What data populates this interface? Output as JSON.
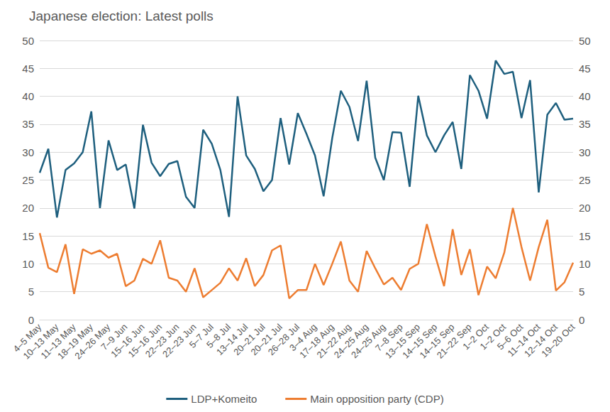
{
  "chart_data": {
    "type": "line",
    "title": "Japanese election: Latest polls",
    "categories": [
      "4–5 May",
      null,
      "10–13 May",
      null,
      "11–13 May",
      null,
      "18–19 May",
      null,
      "24–26 May",
      null,
      "7–9 Jun",
      null,
      "15–16 Jun",
      null,
      "15–16 Jun",
      null,
      "22–23 Jun",
      null,
      "22–23 Jun",
      null,
      "5–7 Jul",
      null,
      "5–8 Jul",
      null,
      "13–14 Jul",
      null,
      "20–21 Jul",
      null,
      "20–21 Jul",
      null,
      "26–28 Jul",
      null,
      "3–4 Aug",
      null,
      "17–18 Aug",
      null,
      "21–22 Aug",
      null,
      "24–25 Aug",
      null,
      "24–25 Aug",
      null,
      "7–8 Sep",
      null,
      "13–15 Sep",
      null,
      "14–15 Sep",
      null,
      "14–15 Sep",
      null,
      "21–22 Sep",
      null,
      "1–2 Oct",
      null,
      "1–2 Oct",
      null,
      "5–6 Oct",
      null,
      "11–14 Oct",
      null,
      "12–14 Oct",
      null,
      "19–20 Oct"
    ],
    "series": [
      {
        "name": "LDP+Komeito",
        "color": "#1e5f7e",
        "values": [
          26.3,
          30.6,
          18.3,
          26.8,
          28,
          30,
          37.3,
          20,
          32.1,
          26.8,
          27.8,
          19.9,
          34.9,
          28.1,
          25.7,
          27.9,
          28.4,
          22,
          20,
          34,
          31.5,
          26.8,
          18.4,
          40,
          29.4,
          27,
          23,
          25,
          36.1,
          27.8,
          37,
          33.3,
          29.4,
          22.1,
          32.5,
          41,
          38.1,
          32,
          42.8,
          29,
          25,
          33.6,
          33.5,
          23.8,
          40.1,
          33,
          30,
          33,
          35.4,
          27,
          43.8,
          41,
          36,
          46.4,
          44,
          44.4,
          36.1,
          42.9,
          22.8,
          36.7,
          38.8,
          35.8,
          36
        ]
      },
      {
        "name": "Main opposition party (CDP)",
        "color": "#ed7d31",
        "values": [
          15.5,
          9.3,
          8.5,
          13.5,
          4.6,
          12.6,
          11.8,
          12.4,
          11.1,
          11.8,
          6,
          7,
          10.9,
          10,
          14.2,
          7.5,
          7,
          5,
          9.2,
          4,
          5.3,
          6.6,
          9.2,
          7,
          11,
          6,
          8,
          12.4,
          13.3,
          3.8,
          5.3,
          5.3,
          10,
          6.2,
          10,
          14,
          7,
          5,
          12.3,
          9.2,
          6.3,
          7.5,
          5.3,
          9.1,
          10,
          17.1,
          11.3,
          6,
          16.2,
          8,
          12.6,
          4.4,
          9.5,
          7.4,
          12,
          20,
          13,
          7,
          13,
          17.9,
          5.2,
          6.7,
          10.2
        ]
      }
    ],
    "ylim": [
      0,
      50
    ],
    "yticks": [
      0,
      5,
      10,
      15,
      20,
      25,
      30,
      35,
      40,
      45,
      50
    ],
    "y2lim": [
      0,
      50
    ],
    "y2ticks": [
      0,
      5,
      10,
      15,
      20,
      25,
      30,
      35,
      40,
      45,
      50
    ],
    "grid": true,
    "legend": "bottom",
    "marker": "none"
  }
}
